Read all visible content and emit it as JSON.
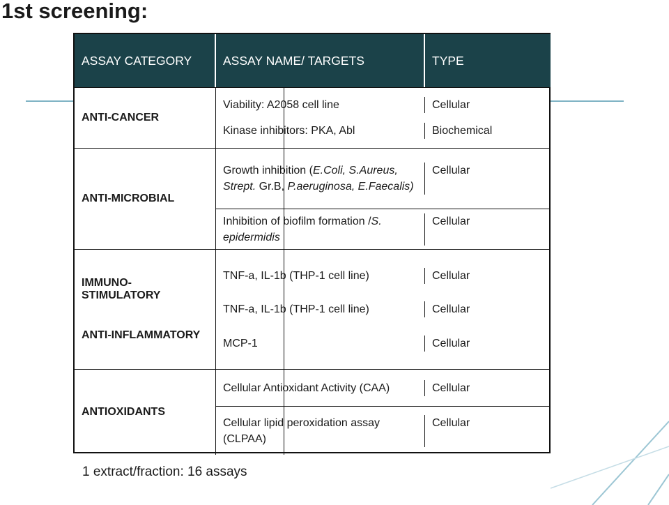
{
  "title": "1st screening:",
  "table": {
    "header": [
      "ASSAY CATEGORY",
      "ASSAY NAME/ TARGETS",
      "TYPE"
    ],
    "blocks": [
      {
        "categories": [
          "ANTI-CANCER"
        ],
        "rows": [
          {
            "lines": [
              {
                "name": [
                  {
                    "text": "Viability: A2058 cell line",
                    "italic": false
                  }
                ],
                "type": "Cellular"
              },
              {
                "name": [
                  {
                    "text": "Kinase inhibitors: PKA, Abl",
                    "italic": false
                  }
                ],
                "type": "Biochemical"
              }
            ]
          }
        ]
      },
      {
        "categories": [
          "ANTI-MICROBIAL"
        ],
        "rows": [
          {
            "lines": [
              {
                "name": [
                  {
                    "text": "Growth inhibition (",
                    "italic": false
                  },
                  {
                    "text": "E.Coli, S.Aureus, Strept.",
                    "italic": true
                  },
                  {
                    "text": " Gr.B, ",
                    "italic": false
                  },
                  {
                    "text": "P.aeruginosa, E.Faecalis)",
                    "italic": true
                  }
                ],
                "type": "Cellular"
              }
            ]
          },
          {
            "lines": [
              {
                "name": [
                  {
                    "text": "Inhibition of biofilm formation /",
                    "italic": false
                  },
                  {
                    "text": "S. epidermidis",
                    "italic": true
                  }
                ],
                "type": "Cellular"
              }
            ]
          }
        ]
      },
      {
        "categories": [
          "IMMUNO-STIMULATORY",
          "ANTI-INFLAMMATORY"
        ],
        "rows": [
          {
            "lines": [
              {
                "name": [
                  {
                    "text": "TNF-a, IL-1b (THP-1 cell line)",
                    "italic": false
                  }
                ],
                "type": "Cellular"
              },
              {
                "name": [
                  {
                    "text": "TNF-a, IL-1b (THP-1 cell line)",
                    "italic": false
                  }
                ],
                "type": "Cellular"
              },
              {
                "name": [
                  {
                    "text": "MCP-1",
                    "italic": false
                  }
                ],
                "type": "Cellular"
              }
            ]
          }
        ]
      },
      {
        "categories": [
          "ANTIOXIDANTS"
        ],
        "rows": [
          {
            "lines": [
              {
                "name": [
                  {
                    "text": "Cellular Antioxidant Activity (CAA)",
                    "italic": false
                  }
                ],
                "type": "Cellular"
              }
            ]
          },
          {
            "lines": [
              {
                "name": [
                  {
                    "text": "Cellular lipid peroxidation assay (CLPAA)",
                    "italic": false
                  }
                ],
                "type": "Cellular"
              }
            ]
          }
        ]
      }
    ]
  },
  "footer": "1 extract/fraction: 16 assays"
}
